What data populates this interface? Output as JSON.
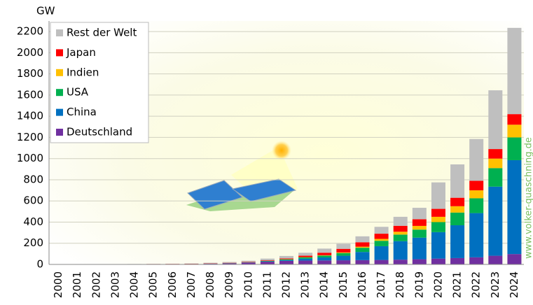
{
  "chart_data": {
    "type": "stacked_bar",
    "y_axis_label": "GW",
    "watermark": "www.volker-quaschning.de",
    "categories": [
      "2000",
      "2001",
      "2002",
      "2003",
      "2004",
      "2005",
      "2006",
      "2007",
      "2008",
      "2009",
      "2010",
      "2011",
      "2012",
      "2013",
      "2014",
      "2015",
      "2016",
      "2017",
      "2018",
      "2019",
      "2020",
      "2021",
      "2022",
      "2023",
      "2024"
    ],
    "series": [
      {
        "name": "Deutschland",
        "color": "#7030a0",
        "values": [
          0.1,
          0.2,
          0.3,
          0.4,
          1.1,
          2.1,
          2.9,
          4.2,
          6.1,
          10.6,
          18,
          25.9,
          34,
          36.7,
          37.9,
          39.2,
          40.7,
          42.3,
          45,
          49,
          55,
          60,
          67,
          82,
          98
        ]
      },
      {
        "name": "China",
        "color": "#0070c0",
        "values": [
          0,
          0,
          0,
          0.1,
          0.1,
          0.1,
          0.1,
          0.1,
          0.1,
          0.3,
          0.8,
          3.3,
          6.7,
          17.7,
          28,
          43,
          77,
          130,
          175,
          204,
          250,
          310,
          418,
          653,
          887
        ]
      },
      {
        "name": "USA",
        "color": "#00b050",
        "values": [
          0.1,
          0.2,
          0.2,
          0.3,
          0.4,
          0.5,
          0.6,
          0.8,
          1.2,
          1.6,
          2.5,
          4.4,
          7.7,
          12,
          18,
          25.6,
          40,
          51,
          62,
          76,
          95,
          120,
          140,
          175,
          215
        ]
      },
      {
        "name": "Indien",
        "color": "#ffc000",
        "values": [
          0,
          0,
          0,
          0,
          0,
          0,
          0,
          0,
          0,
          0,
          0.1,
          0.5,
          1,
          2.3,
          3.4,
          5.4,
          9.7,
          18,
          27,
          35,
          50,
          60,
          75,
          90,
          120
        ]
      },
      {
        "name": "Japan",
        "color": "#ff0000",
        "values": [
          0.3,
          0.45,
          0.6,
          0.9,
          1.1,
          1.4,
          1.7,
          1.9,
          2.1,
          2.6,
          3.6,
          4.9,
          6.6,
          13.6,
          23.3,
          34,
          42,
          49,
          56,
          63,
          75,
          80,
          90,
          90,
          100
        ]
      },
      {
        "name": "Rest der Welt",
        "color": "#bfbfbf",
        "values": [
          0.8,
          0.9,
          1.2,
          1.3,
          1.3,
          1.3,
          1.7,
          2.5,
          6.5,
          8,
          10,
          16,
          24,
          28,
          39,
          48,
          56,
          65,
          85,
          108,
          250,
          315,
          395,
          555,
          815
        ]
      }
    ],
    "ylim": [
      0,
      2300
    ],
    "yticks": [
      0,
      200,
      400,
      600,
      800,
      1000,
      1200,
      1400,
      1600,
      1800,
      2000,
      2200
    ],
    "grid": true,
    "legend": "top-left"
  }
}
